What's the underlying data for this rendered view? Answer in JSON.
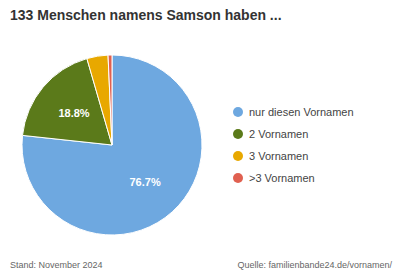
{
  "chart_data": {
    "type": "pie",
    "title": "133 Menschen namens Samson haben ...",
    "categories": [
      "nur diesen Vornamen",
      "2 Vornamen",
      "3 Vornamen",
      ">3 Vornamen"
    ],
    "values": [
      76.7,
      18.8,
      3.8,
      0.7
    ],
    "colors": [
      "#6EA8E0",
      "#5B7A1A",
      "#E8A800",
      "#E06050"
    ],
    "data_labels": true,
    "value_labels": [
      "76.7%",
      "18.8%",
      null,
      null
    ],
    "legend": "right",
    "annotations": [
      "Stand: November 2024",
      "Quelle: familienbande24.de/vornamen/"
    ]
  }
}
